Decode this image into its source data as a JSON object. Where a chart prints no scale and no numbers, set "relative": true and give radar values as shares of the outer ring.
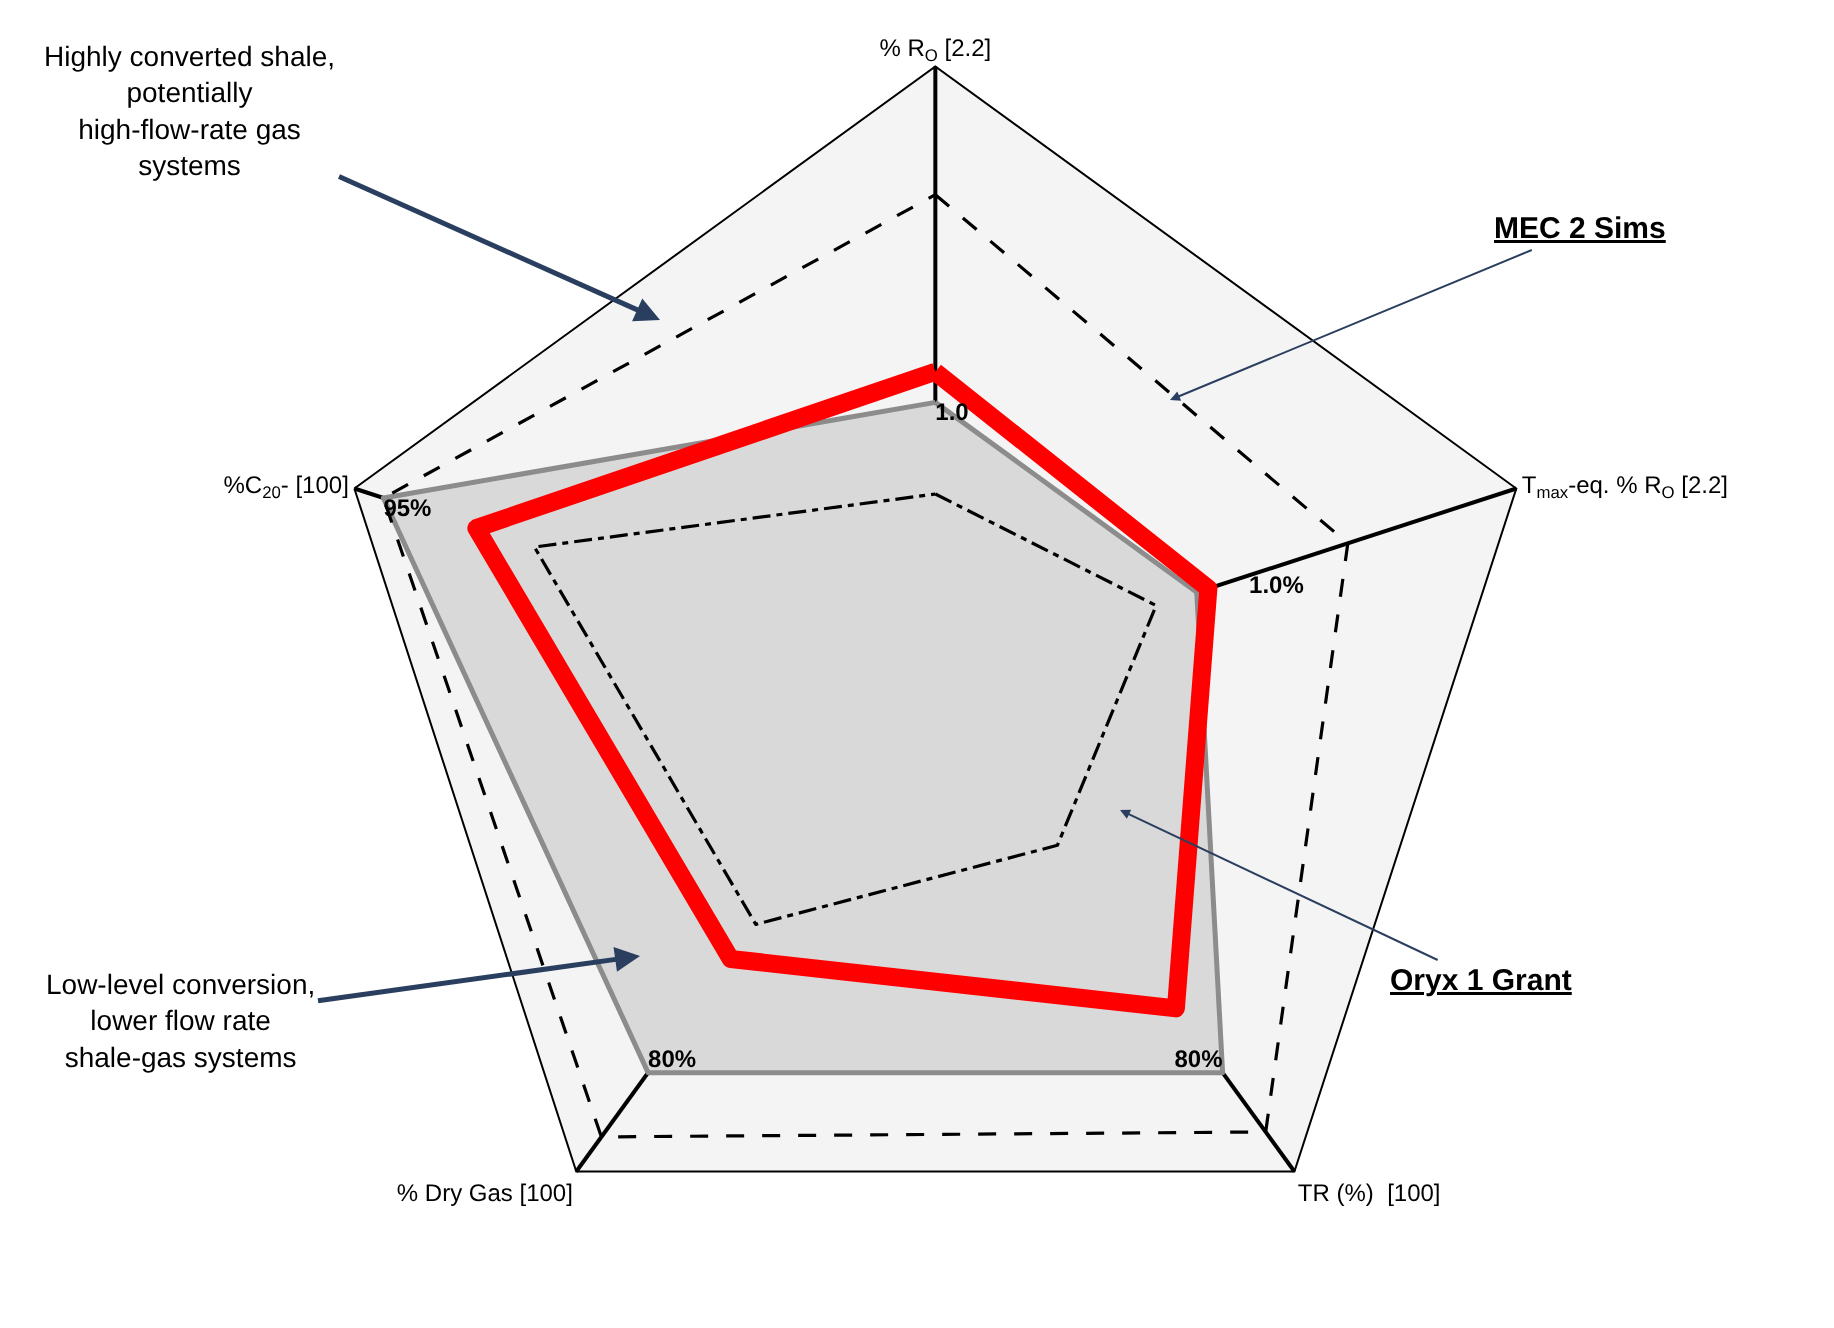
{
  "chart_data": {
    "type": "radar",
    "relative": true,
    "legend": false,
    "grid": true,
    "categories": [
      "% R$_{O}$ [2.2]",
      "T$_{max}$-eq. % R$_{O}$ [2.2]",
      "TR (%)  [100]",
      "% Dry Gas [100]",
      "%C$_{20}$- [100]"
    ],
    "series": [
      {
        "color": "#8c8c8c",
        "line_style": "solid",
        "values": [
          0.45,
          0.45,
          0.8,
          0.8,
          0.95
        ]
      },
      {
        "name": "MEC 2 Sims",
        "color": "#000000",
        "line_style": "dashed",
        "values": [
          0.79,
          0.71,
          0.92,
          0.93,
          0.95
        ]
      },
      {
        "color": "#000000",
        "line_style": "dashdot",
        "values": [
          0.3,
          0.38,
          0.34,
          0.5,
          0.69
        ]
      },
      {
        "name": "Oryx 1 Grant",
        "color": "#ff0000",
        "line_style": "solid",
        "values": [
          0.5,
          0.47,
          0.67,
          0.57,
          0.79
        ]
      }
    ],
    "annotations": [
      "Highly converted shale, potentially high-flow-rate gas systems",
      "Low-level conversion, lower flow rate shale-gas systems",
      "1.0",
      "1.0%",
      "80%",
      "80%",
      "95%"
    ]
  }
}
